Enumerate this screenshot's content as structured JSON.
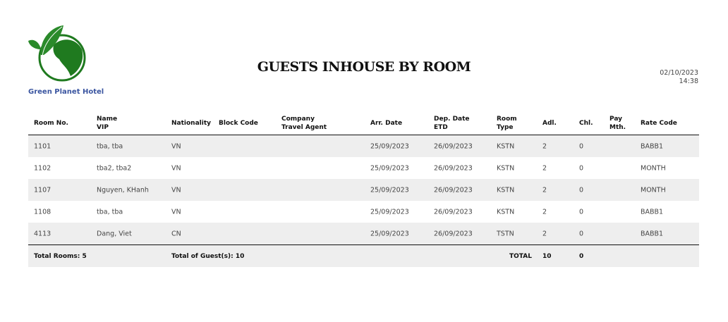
{
  "hotel": {
    "name": "Green Planet Hotel",
    "logo": "globe-with-leaves-logo",
    "brand_color": "#1f7a1f"
  },
  "report": {
    "title": "GUESTS INHOUSE BY ROOM",
    "date": "02/10/2023",
    "time": "14:38"
  },
  "columns": [
    {
      "l1": "Room No.",
      "l2": ""
    },
    {
      "l1": "Name",
      "l2": "VIP"
    },
    {
      "l1": "Nationality",
      "l2": ""
    },
    {
      "l1": "Block Code",
      "l2": ""
    },
    {
      "l1": "Company",
      "l2": "Travel Agent"
    },
    {
      "l1": "Arr. Date",
      "l2": ""
    },
    {
      "l1": "Dep. Date",
      "l2": "ETD"
    },
    {
      "l1": "Room",
      "l2": "Type"
    },
    {
      "l1": "Adl.",
      "l2": ""
    },
    {
      "l1": "Chl.",
      "l2": ""
    },
    {
      "l1": "Pay",
      "l2": "Mth."
    },
    {
      "l1": "Rate Code",
      "l2": ""
    }
  ],
  "rows": [
    [
      "1101",
      "tba, tba",
      "VN",
      "",
      "",
      "25/09/2023",
      "26/09/2023",
      "KSTN",
      "2",
      "0",
      "",
      "BABB1"
    ],
    [
      "1102",
      "tba2, tba2",
      "VN",
      "",
      "",
      "25/09/2023",
      "26/09/2023",
      "KSTN",
      "2",
      "0",
      "",
      "MONTH"
    ],
    [
      "1107",
      "Nguyen, KHanh",
      "VN",
      "",
      "",
      "25/09/2023",
      "26/09/2023",
      "KSTN",
      "2",
      "0",
      "",
      "MONTH"
    ],
    [
      "1108",
      "tba, tba",
      "VN",
      "",
      "",
      "25/09/2023",
      "26/09/2023",
      "KSTN",
      "2",
      "0",
      "",
      "BABB1"
    ],
    [
      "4113",
      "Dang, Viet",
      "CN",
      "",
      "",
      "25/09/2023",
      "26/09/2023",
      "TSTN",
      "2",
      "0",
      "",
      "BABB1"
    ]
  ],
  "footer": {
    "total_rooms": "Total Rooms: 5",
    "total_guests": "Total of Guest(s): 10",
    "total_label": "TOTAL",
    "total_adults": "10",
    "total_children": "0"
  }
}
